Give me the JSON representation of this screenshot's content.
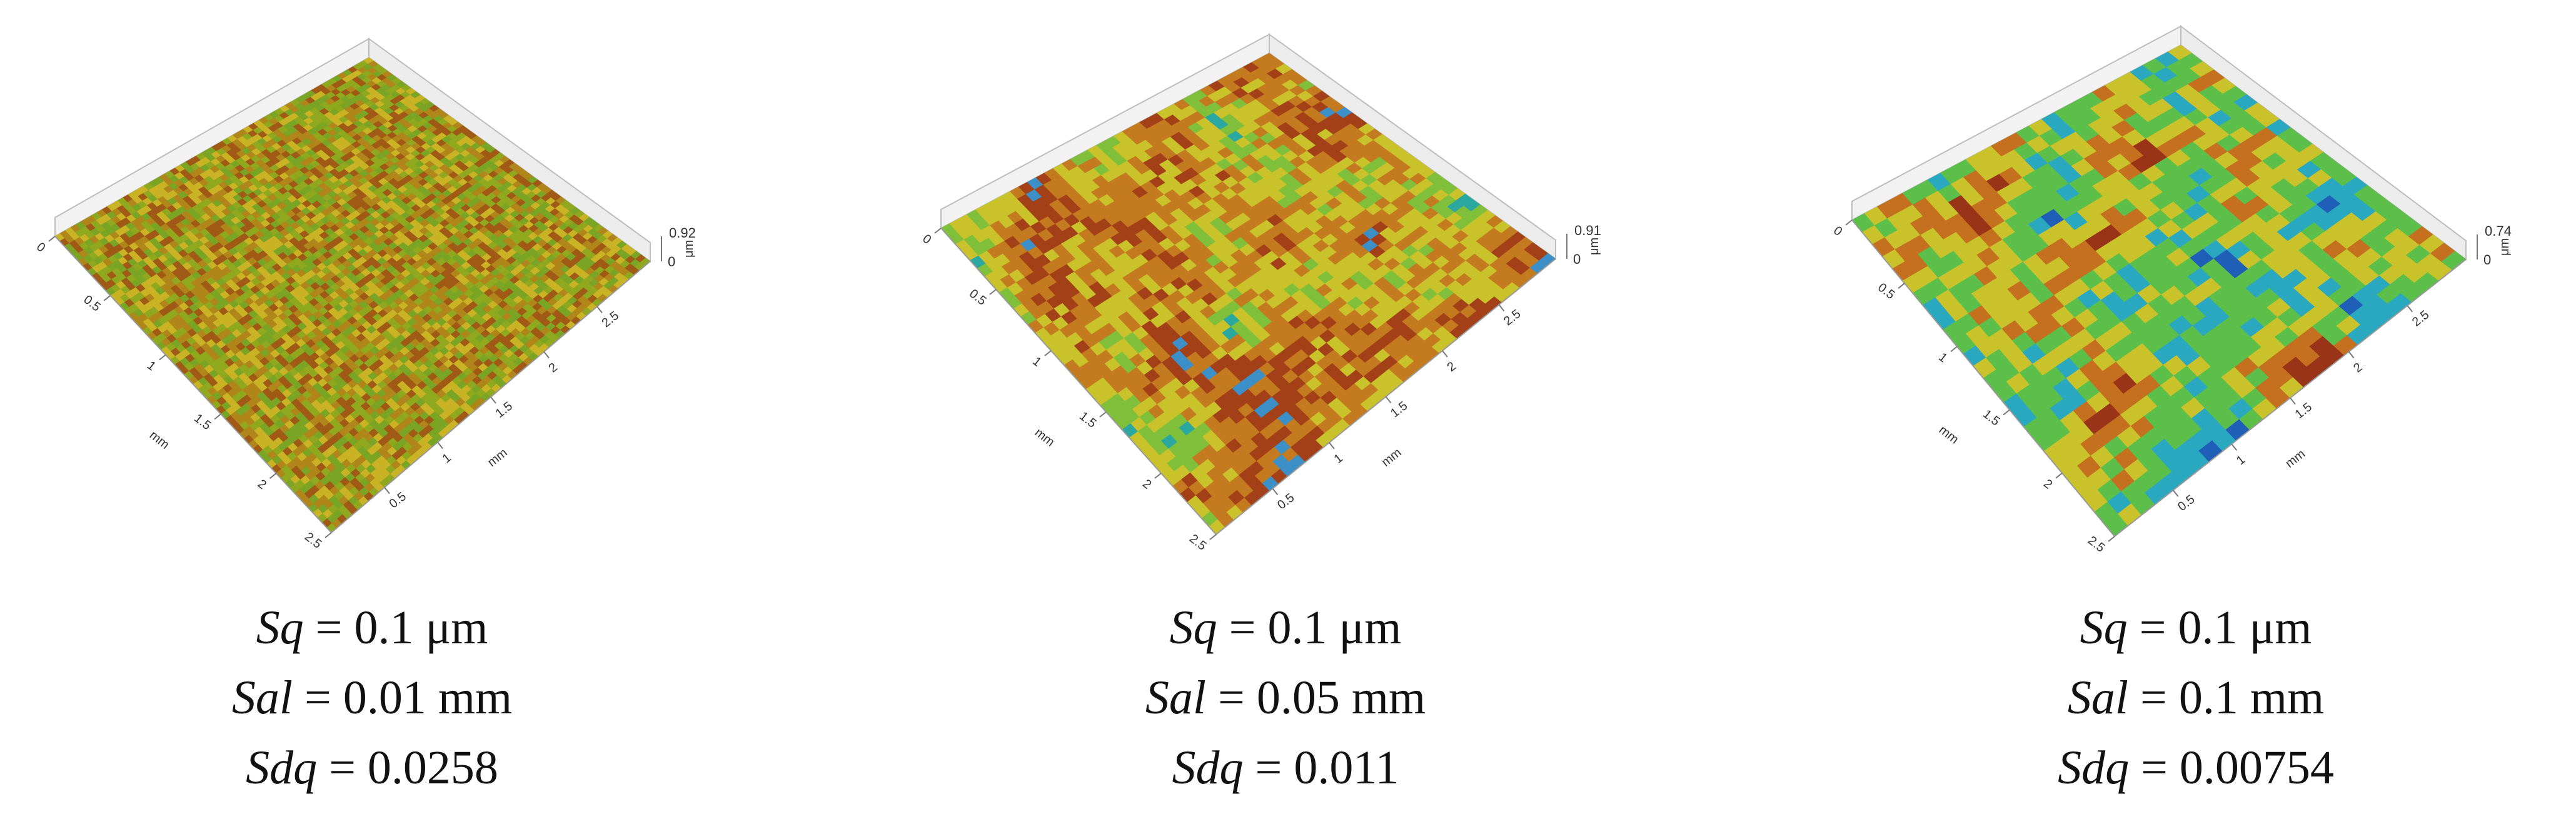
{
  "panels": [
    {
      "name": "panel-1",
      "z_max": "0.92",
      "z_min": "0",
      "z_unit": "μm",
      "horizontal_unit": "mm",
      "left_ticks": [
        "0",
        "0.5",
        "1",
        "1.5",
        "2",
        "2.5"
      ],
      "right_ticks": [
        "0.5",
        "1",
        "1.5",
        "2",
        "2.5"
      ],
      "params": [
        {
          "symbol": "Sq",
          "value": " = 0.1 μm"
        },
        {
          "symbol": "Sal",
          "value": " = 0.01 mm"
        },
        {
          "symbol": "Sdq",
          "value": " = 0.0258"
        }
      ],
      "surface": {
        "correlation": "fine",
        "colors": [
          "#8fa81e",
          "#b0861a",
          "#a05a16",
          "#c9b324",
          "#7aa423"
        ]
      }
    },
    {
      "name": "panel-2",
      "z_max": "0.91",
      "z_min": "0",
      "z_unit": "μm",
      "horizontal_unit": "mm",
      "left_ticks": [
        "0",
        "0.5",
        "1",
        "1.5",
        "2",
        "2.5"
      ],
      "right_ticks": [
        "0.5",
        "1",
        "1.5",
        "2",
        "2.5"
      ],
      "params": [
        {
          "symbol": "Sq",
          "value": " = 0.1 μm"
        },
        {
          "symbol": "Sal",
          "value": " = 0.05 mm"
        },
        {
          "symbol": "Sdq",
          "value": " = 0.011"
        }
      ],
      "surface": {
        "correlation": "medium",
        "colors": [
          "#2aa8a0",
          "#7fbf3a",
          "#c9c22a",
          "#c47a1f",
          "#a34018",
          "#3d8fc7"
        ]
      }
    },
    {
      "name": "panel-3",
      "z_max": "0.74",
      "z_min": "0",
      "z_unit": "μm",
      "horizontal_unit": "mm",
      "left_ticks": [
        "0",
        "0.5",
        "1",
        "1.5",
        "2",
        "2.5"
      ],
      "right_ticks": [
        "0.5",
        "1",
        "1.5",
        "2",
        "2.5"
      ],
      "params": [
        {
          "symbol": "Sq",
          "value": " = 0.1 μm"
        },
        {
          "symbol": "Sal",
          "value": " = 0.1 mm"
        },
        {
          "symbol": "Sdq",
          "value": " = 0.00754"
        }
      ],
      "surface": {
        "correlation": "coarse",
        "colors": [
          "#1f5fb8",
          "#2aa8c0",
          "#5cbf4a",
          "#c9c22a",
          "#c4701f",
          "#9a3418"
        ]
      }
    }
  ]
}
